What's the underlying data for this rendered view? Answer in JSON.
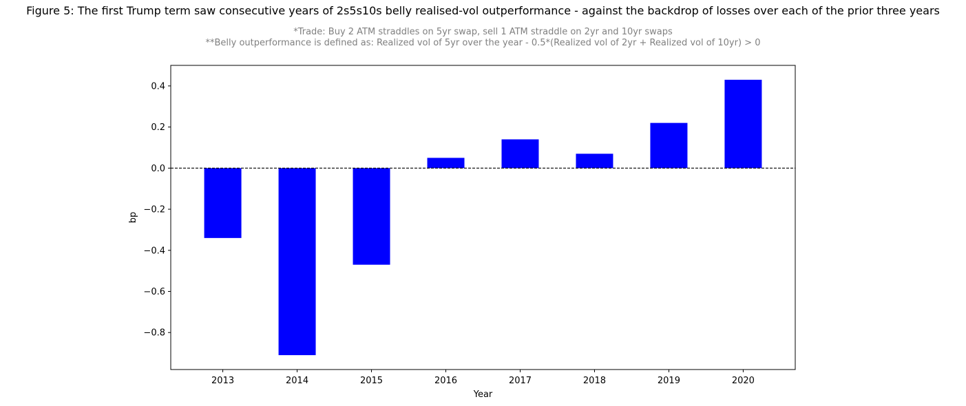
{
  "title": "Figure 5: The first Trump term saw consecutive years of 2s5s10s belly realised-vol outperformance  - against the backdrop of losses over each of the prior three years",
  "subtitle_lines": [
    "*Trade: Buy 2 ATM straddles on 5yr swap, sell 1 ATM straddle on 2yr and 10yr swaps",
    "**Belly outperformance is defined as: Realized vol of 5yr over the year - 0.5*(Realized vol of 2yr + Realized vol of 10yr) > 0"
  ],
  "chart_data": {
    "type": "bar",
    "xlabel": "Year",
    "ylabel": "bp",
    "categories": [
      "2013",
      "2014",
      "2015",
      "2016",
      "2017",
      "2018",
      "2019",
      "2020"
    ],
    "values": [
      -0.34,
      -0.91,
      -0.47,
      0.05,
      0.14,
      0.07,
      0.22,
      0.43
    ],
    "ylim": [
      -0.98,
      0.5
    ],
    "yticks": [
      0.4,
      0.2,
      0.0,
      -0.2,
      -0.4,
      -0.6,
      -0.8
    ],
    "ytick_labels": [
      "0.4",
      "0.2",
      "0.0",
      "−0.2",
      "−0.4",
      "−0.6",
      "−0.8"
    ],
    "bar_color": "#0000ff",
    "zero_line": {
      "style": "dashed",
      "color": "#000000"
    },
    "grid": false,
    "legend": "none"
  }
}
